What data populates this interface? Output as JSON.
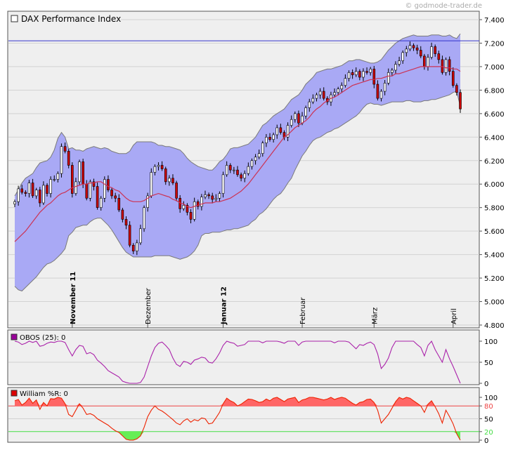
{
  "credit": "© godmode-trader.de",
  "main": {
    "title": "DAX Performance Index",
    "y_ticks": [
      {
        "v": 4800,
        "label": "4.800"
      },
      {
        "v": 5000,
        "label": "5.000"
      },
      {
        "v": 5200,
        "label": "5.200"
      },
      {
        "v": 5400,
        "label": "5.400"
      },
      {
        "v": 5600,
        "label": "5.600"
      },
      {
        "v": 5800,
        "label": "5.800"
      },
      {
        "v": 6000,
        "label": "6.000"
      },
      {
        "v": 6200,
        "label": "6.200"
      },
      {
        "v": 6400,
        "label": "6.400"
      },
      {
        "v": 6600,
        "label": "6.600"
      },
      {
        "v": 6800,
        "label": "6.800"
      },
      {
        "v": 7000,
        "label": "7.000"
      },
      {
        "v": 7200,
        "label": "7.200"
      },
      {
        "v": 7400,
        "label": "7.400"
      }
    ],
    "month_labels": [
      {
        "label": "November 11",
        "bold": true,
        "index": 16
      },
      {
        "label": "Dezember",
        "bold": false,
        "index": 37
      },
      {
        "label": "Januar 12",
        "bold": true,
        "index": 58
      },
      {
        "label": "Februar",
        "bold": false,
        "index": 80
      },
      {
        "label": "März",
        "bold": false,
        "index": 100
      },
      {
        "label": "April",
        "bold": false,
        "index": 122
      }
    ]
  },
  "obos": {
    "label": "OBOS (25): 0",
    "y_ticks": [
      {
        "v": 0,
        "label": "0"
      },
      {
        "v": 50,
        "label": "50"
      },
      {
        "v": 100,
        "label": "100"
      }
    ]
  },
  "williams": {
    "label": "William %R: 0",
    "y_ticks": [
      {
        "v": 0,
        "label": "0"
      },
      {
        "v": 20,
        "label": "20"
      },
      {
        "v": 50,
        "label": "50"
      },
      {
        "v": 80,
        "label": "80"
      },
      {
        "v": 100,
        "label": "100"
      }
    ],
    "overbought": 80,
    "oversold": 20
  },
  "colors": {
    "band_fill": "#a9a9f5",
    "band_line": "#7a7a7a",
    "ma_line": "#cc3355",
    "resistance": "#3333cc",
    "candle_up": "#ffffff",
    "candle_down": "#cc0000",
    "obos_line": "#aa22aa",
    "williams_line": "#ee2200",
    "williams_top_fill": "#ff6666",
    "williams_bottom_fill": "#66ee55",
    "line80": "#ee4444",
    "line20": "#44dd44"
  },
  "chart_data": [
    {
      "type": "candlestick",
      "title": "DAX Performance Index",
      "ylim": [
        4800,
        7400
      ],
      "resistance_level": 7220,
      "series": [
        {
          "name": "close",
          "values": [
            5850,
            5960,
            5930,
            5920,
            6010,
            5900,
            5950,
            5840,
            5990,
            5920,
            6040,
            6040,
            6090,
            6320,
            6280,
            6160,
            5920,
            6020,
            6190,
            6000,
            5880,
            6020,
            5980,
            5800,
            5880,
            6040,
            5950,
            5900,
            5880,
            5780,
            5700,
            5650,
            5480,
            5430,
            5500,
            5620,
            5800,
            5900,
            6100,
            6150,
            6160,
            6130,
            6020,
            6050,
            6010,
            5880,
            5790,
            5820,
            5760,
            5700,
            5850,
            5810,
            5890,
            5910,
            5900,
            5870,
            5880,
            5920,
            6080,
            6160,
            6120,
            6120,
            6080,
            6050,
            6090,
            6150,
            6200,
            6230,
            6260,
            6350,
            6400,
            6380,
            6420,
            6480,
            6440,
            6400,
            6500,
            6550,
            6600,
            6520,
            6580,
            6650,
            6700,
            6730,
            6760,
            6790,
            6730,
            6700,
            6760,
            6780,
            6810,
            6840,
            6900,
            6950,
            6930,
            6960,
            6910,
            6960,
            6950,
            6980,
            6850,
            6730,
            6790,
            6860,
            6950,
            6970,
            7020,
            7050,
            7120,
            7150,
            7180,
            7160,
            7140,
            7090,
            7000,
            7080,
            7170,
            7110,
            7060,
            6950,
            7060,
            6960,
            6840,
            6780,
            6640
          ]
        },
        {
          "name": "bollinger_upper",
          "values": [
            5900,
            5950,
            6010,
            6050,
            6070,
            6090,
            6140,
            6180,
            6190,
            6200,
            6230,
            6290,
            6390,
            6440,
            6400,
            6300,
            6310,
            6290,
            6290,
            6280,
            6300,
            6310,
            6320,
            6310,
            6300,
            6310,
            6300,
            6280,
            6270,
            6260,
            6260,
            6260,
            6280,
            6330,
            6360,
            6360,
            6360,
            6360,
            6360,
            6350,
            6330,
            6330,
            6320,
            6320,
            6310,
            6300,
            6290,
            6260,
            6220,
            6190,
            6170,
            6150,
            6140,
            6130,
            6120,
            6120,
            6150,
            6190,
            6210,
            6250,
            6300,
            6310,
            6310,
            6320,
            6330,
            6340,
            6370,
            6400,
            6450,
            6500,
            6520,
            6550,
            6580,
            6600,
            6620,
            6640,
            6680,
            6720,
            6740,
            6760,
            6800,
            6850,
            6880,
            6910,
            6950,
            6960,
            6970,
            6980,
            6980,
            6990,
            7000,
            7010,
            7030,
            7050,
            7050,
            7060,
            7060,
            7050,
            7040,
            7030,
            7030,
            7040,
            7060,
            7100,
            7140,
            7170,
            7200,
            7220,
            7240,
            7250,
            7260,
            7270,
            7260,
            7260,
            7260,
            7260,
            7270,
            7270,
            7270,
            7260,
            7260,
            7270,
            7250,
            7240,
            7280
          ]
        },
        {
          "name": "bollinger_middle",
          "values": [
            5510,
            5540,
            5570,
            5600,
            5640,
            5680,
            5720,
            5760,
            5790,
            5820,
            5840,
            5870,
            5900,
            5920,
            5930,
            5950,
            5970,
            5980,
            5990,
            6000,
            6000,
            6010,
            6010,
            6020,
            6020,
            6000,
            5980,
            5970,
            5950,
            5940,
            5910,
            5880,
            5860,
            5850,
            5850,
            5850,
            5860,
            5880,
            5900,
            5910,
            5920,
            5910,
            5900,
            5890,
            5870,
            5860,
            5840,
            5830,
            5810,
            5800,
            5810,
            5820,
            5830,
            5840,
            5840,
            5840,
            5850,
            5850,
            5860,
            5870,
            5880,
            5900,
            5920,
            5940,
            5970,
            6000,
            6040,
            6080,
            6120,
            6160,
            6200,
            6240,
            6280,
            6320,
            6360,
            6400,
            6420,
            6450,
            6480,
            6500,
            6520,
            6540,
            6570,
            6610,
            6640,
            6660,
            6690,
            6710,
            6730,
            6740,
            6760,
            6780,
            6800,
            6820,
            6840,
            6850,
            6860,
            6870,
            6880,
            6890,
            6890,
            6900,
            6900,
            6910,
            6920,
            6920,
            6940,
            6940,
            6950,
            6960,
            6970,
            6980,
            6990,
            7000,
            7000,
            7000,
            7000,
            7000,
            7000,
            7000,
            6990,
            6990,
            6980,
            6980,
            6960
          ]
        },
        {
          "name": "bollinger_lower",
          "values": [
            5130,
            5100,
            5090,
            5120,
            5150,
            5180,
            5210,
            5250,
            5290,
            5320,
            5330,
            5350,
            5380,
            5410,
            5450,
            5560,
            5590,
            5630,
            5640,
            5650,
            5650,
            5680,
            5700,
            5710,
            5710,
            5680,
            5650,
            5610,
            5560,
            5510,
            5460,
            5420,
            5400,
            5380,
            5380,
            5380,
            5380,
            5380,
            5380,
            5390,
            5390,
            5390,
            5390,
            5390,
            5380,
            5370,
            5360,
            5370,
            5380,
            5400,
            5430,
            5480,
            5560,
            5580,
            5580,
            5590,
            5590,
            5590,
            5600,
            5610,
            5610,
            5620,
            5620,
            5630,
            5640,
            5650,
            5680,
            5700,
            5740,
            5760,
            5790,
            5830,
            5870,
            5900,
            5920,
            5960,
            6010,
            6050,
            6120,
            6180,
            6240,
            6280,
            6330,
            6370,
            6390,
            6400,
            6420,
            6440,
            6450,
            6470,
            6480,
            6500,
            6520,
            6540,
            6560,
            6580,
            6610,
            6650,
            6680,
            6690,
            6680,
            6680,
            6670,
            6680,
            6690,
            6700,
            6700,
            6700,
            6700,
            6710,
            6710,
            6700,
            6700,
            6700,
            6710,
            6710,
            6720,
            6720,
            6730,
            6740,
            6750,
            6760,
            6780,
            6790,
            6660
          ]
        }
      ]
    },
    {
      "type": "line",
      "title": "OBOS (25)",
      "ylim": [
        0,
        100
      ],
      "series": [
        {
          "name": "OBOS",
          "values": [
            100,
            98,
            92,
            95,
            100,
            97,
            100,
            88,
            90,
            95,
            98,
            97,
            100,
            100,
            97,
            80,
            65,
            80,
            90,
            88,
            70,
            73,
            68,
            55,
            48,
            40,
            30,
            25,
            20,
            15,
            5,
            2,
            0,
            0,
            0,
            2,
            15,
            40,
            65,
            85,
            95,
            98,
            90,
            80,
            60,
            45,
            40,
            52,
            50,
            45,
            55,
            58,
            62,
            60,
            50,
            48,
            58,
            72,
            90,
            100,
            97,
            95,
            88,
            90,
            92,
            100,
            100,
            100,
            100,
            96,
            100,
            100,
            100,
            100,
            98,
            95,
            100,
            100,
            100,
            90,
            98,
            100,
            100,
            100,
            100,
            100,
            100,
            100,
            100,
            96,
            100,
            100,
            100,
            98,
            90,
            82,
            92,
            90,
            95,
            98,
            92,
            70,
            35,
            45,
            60,
            85,
            100,
            100,
            100,
            100,
            100,
            100,
            92,
            85,
            65,
            90,
            100,
            80,
            65,
            50,
            80,
            58,
            40,
            20,
            0
          ]
        }
      ]
    },
    {
      "type": "area",
      "title": "William %R",
      "ylim": [
        0,
        100
      ],
      "series": [
        {
          "name": "William %R",
          "values": [
            92,
            95,
            82,
            88,
            98,
            86,
            94,
            72,
            88,
            80,
            97,
            96,
            100,
            98,
            85,
            60,
            55,
            70,
            85,
            75,
            60,
            62,
            58,
            50,
            45,
            40,
            35,
            28,
            22,
            18,
            10,
            2,
            0,
            0,
            3,
            10,
            30,
            55,
            70,
            80,
            72,
            68,
            62,
            55,
            48,
            40,
            36,
            45,
            50,
            42,
            48,
            45,
            52,
            50,
            38,
            40,
            52,
            65,
            85,
            98,
            92,
            88,
            80,
            84,
            90,
            96,
            95,
            92,
            88,
            90,
            96,
            92,
            98,
            100,
            95,
            90,
            96,
            98,
            100,
            88,
            94,
            96,
            100,
            100,
            98,
            96,
            94,
            96,
            100,
            95,
            98,
            100,
            98,
            92,
            86,
            82,
            88,
            90,
            95,
            96,
            88,
            70,
            40,
            50,
            60,
            75,
            90,
            100,
            96,
            100,
            98,
            92,
            86,
            80,
            65,
            84,
            92,
            78,
            62,
            40,
            70,
            55,
            38,
            15,
            0
          ]
        }
      ]
    }
  ]
}
